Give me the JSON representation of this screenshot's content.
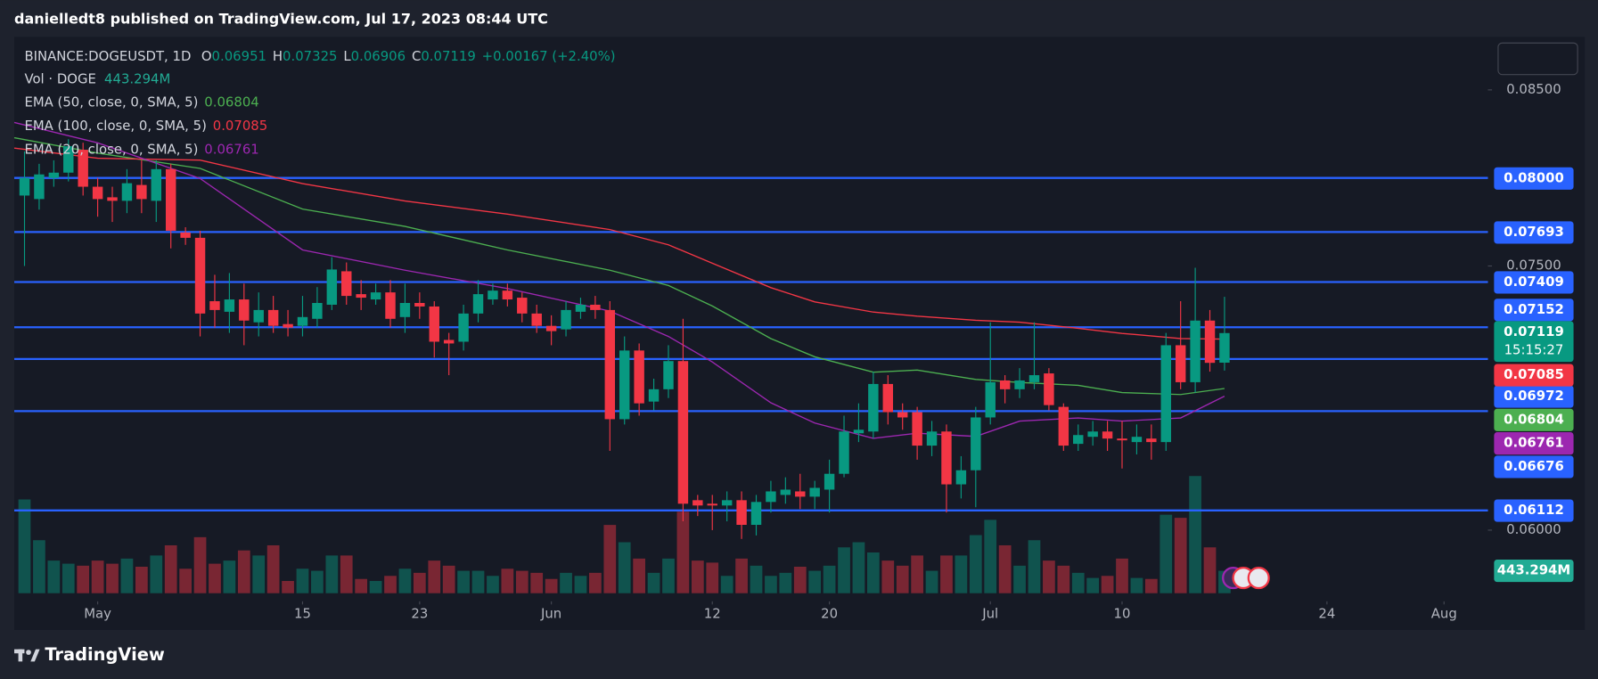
{
  "header": {
    "text": "danielledt8 published on TradingView.com, Jul 17, 2023 08:44 UTC"
  },
  "chart_data": {
    "type": "candlestick",
    "symbol": "BINANCE:DOGEUSDT, 1D",
    "ohlc_letters": [
      "O",
      "H",
      "L",
      "C"
    ],
    "change": "+0.00167 (+2.40%)",
    "countdown": "15:15:27",
    "up_color": "#089981",
    "down_color": "#f23645",
    "open": [
      0.079,
      0.0788,
      0.08,
      0.0803,
      0.0816,
      0.0795,
      0.0789,
      0.0787,
      0.0796,
      0.0787,
      0.0805,
      0.0769,
      0.0766,
      0.073,
      0.0724,
      0.0731,
      0.0718,
      0.0725,
      0.0717,
      0.0716,
      0.072,
      0.0728,
      0.0747,
      0.0734,
      0.0731,
      0.0735,
      0.0721,
      0.0729,
      0.0727,
      0.0708,
      0.0707,
      0.0723,
      0.0731,
      0.0736,
      0.0732,
      0.0723,
      0.0716,
      0.0714,
      0.0724,
      0.0728,
      0.0725,
      0.0663,
      0.0702,
      0.0673,
      0.068,
      0.0696,
      0.0617,
      0.0615,
      0.0614,
      0.0617,
      0.0603,
      0.0616,
      0.062,
      0.0622,
      0.0619,
      0.0623,
      0.0632,
      0.0655,
      0.0656,
      0.0683,
      0.0667,
      0.0667,
      0.0648,
      0.0656,
      0.0626,
      0.0634,
      0.0664,
      0.0685,
      0.068,
      0.0684,
      0.0689,
      0.067,
      0.0649,
      0.0653,
      0.0656,
      0.0652,
      0.065,
      0.0652,
      0.065,
      0.0705,
      0.0684,
      0.0719,
      0.06951
    ],
    "high": [
      0.0815,
      0.0808,
      0.081,
      0.0822,
      0.082,
      0.08,
      0.0795,
      0.0805,
      0.081,
      0.081,
      0.0808,
      0.0772,
      0.077,
      0.0745,
      0.0746,
      0.074,
      0.0735,
      0.0733,
      0.0725,
      0.0733,
      0.0738,
      0.0755,
      0.0752,
      0.0742,
      0.074,
      0.0742,
      0.074,
      0.0735,
      0.073,
      0.0712,
      0.0728,
      0.0742,
      0.074,
      0.074,
      0.0735,
      0.0728,
      0.0722,
      0.073,
      0.0732,
      0.0733,
      0.073,
      0.071,
      0.0706,
      0.0686,
      0.0705,
      0.072,
      0.062,
      0.062,
      0.0622,
      0.0622,
      0.062,
      0.0628,
      0.063,
      0.0632,
      0.0628,
      0.064,
      0.0665,
      0.0672,
      0.069,
      0.0688,
      0.0672,
      0.067,
      0.0662,
      0.066,
      0.0642,
      0.067,
      0.0718,
      0.0688,
      0.0692,
      0.0718,
      0.0692,
      0.0672,
      0.066,
      0.0662,
      0.0662,
      0.0662,
      0.066,
      0.066,
      0.0712,
      0.073,
      0.0749,
      0.0725,
      0.07325
    ],
    "low": [
      0.075,
      0.0782,
      0.0795,
      0.0798,
      0.079,
      0.0778,
      0.0775,
      0.078,
      0.078,
      0.0775,
      0.076,
      0.0762,
      0.071,
      0.0715,
      0.0712,
      0.0705,
      0.071,
      0.0712,
      0.071,
      0.071,
      0.0715,
      0.0725,
      0.0728,
      0.0725,
      0.0728,
      0.0715,
      0.0712,
      0.072,
      0.0698,
      0.0688,
      0.0702,
      0.0718,
      0.0728,
      0.0727,
      0.0718,
      0.0712,
      0.0705,
      0.071,
      0.072,
      0.072,
      0.0645,
      0.066,
      0.0665,
      0.0668,
      0.0675,
      0.0605,
      0.0608,
      0.06,
      0.0605,
      0.0595,
      0.0597,
      0.061,
      0.0615,
      0.0612,
      0.0612,
      0.061,
      0.063,
      0.065,
      0.0652,
      0.066,
      0.0657,
      0.064,
      0.0642,
      0.061,
      0.0618,
      0.0613,
      0.066,
      0.0672,
      0.0675,
      0.068,
      0.0668,
      0.0645,
      0.0645,
      0.0648,
      0.0645,
      0.0635,
      0.0643,
      0.064,
      0.0645,
      0.068,
      0.0678,
      0.069,
      0.06906
    ],
    "close": [
      0.08,
      0.0802,
      0.0803,
      0.0818,
      0.0795,
      0.0788,
      0.0787,
      0.0797,
      0.0788,
      0.0805,
      0.077,
      0.0766,
      0.0723,
      0.0725,
      0.0731,
      0.0719,
      0.0725,
      0.0716,
      0.0715,
      0.0721,
      0.0729,
      0.0748,
      0.0733,
      0.0732,
      0.0735,
      0.072,
      0.0729,
      0.0727,
      0.0707,
      0.0706,
      0.0723,
      0.0734,
      0.0736,
      0.0731,
      0.0723,
      0.0716,
      0.0713,
      0.0725,
      0.0728,
      0.0725,
      0.0663,
      0.0702,
      0.0672,
      0.068,
      0.0696,
      0.0615,
      0.0614,
      0.0614,
      0.0617,
      0.0603,
      0.0616,
      0.0622,
      0.0623,
      0.0619,
      0.0624,
      0.0632,
      0.0656,
      0.0657,
      0.0683,
      0.0667,
      0.0664,
      0.0648,
      0.0656,
      0.0626,
      0.0634,
      0.0664,
      0.0684,
      0.068,
      0.0685,
      0.0688,
      0.0671,
      0.0648,
      0.0654,
      0.0656,
      0.0652,
      0.0651,
      0.0653,
      0.065,
      0.0705,
      0.0684,
      0.0719,
      0.0695,
      0.07119
    ],
    "volume": {
      "name": "Vol · DOGE",
      "last_label": "443.294M",
      "values": [
        1854,
        1048,
        645,
        584,
        544,
        645,
        584,
        685,
        524,
        746,
        947,
        484,
        1108,
        584,
        645,
        846,
        746,
        947,
        242,
        484,
        443,
        746,
        746,
        282,
        242,
        343,
        484,
        403,
        645,
        544,
        443,
        443,
        343,
        484,
        443,
        403,
        282,
        403,
        343,
        403,
        1350,
        1008,
        685,
        403,
        685,
        1612,
        645,
        605,
        343,
        685,
        544,
        343,
        403,
        524,
        443,
        544,
        907,
        1008,
        806,
        645,
        544,
        746,
        443,
        746,
        746,
        1149,
        1451,
        947,
        544,
        1048,
        645,
        544,
        403,
        302,
        343,
        685,
        302,
        282,
        1552,
        1491,
        2317,
        907,
        443.294
      ]
    },
    "ema": {
      "x": [
        -0.7,
        5,
        12,
        19,
        26,
        33,
        40,
        44,
        47,
        51,
        54,
        58,
        61,
        65,
        68,
        72,
        75,
        79,
        82
      ],
      "series": [
        {
          "name": "EMA (50, close, 0, SMA, 5)",
          "color": "#4caf50",
          "values": [
            0.08228,
            0.08141,
            0.08054,
            0.07823,
            0.07725,
            0.07591,
            0.07476,
            0.07389,
            0.07273,
            0.07088,
            0.06984,
            0.06897,
            0.06909,
            0.06856,
            0.06839,
            0.06822,
            0.06781,
            0.0677,
            0.06804
          ]
        },
        {
          "name": "EMA (100, close, 0, SMA, 5)",
          "color": "#f23645",
          "values": [
            0.0817,
            0.08112,
            0.08101,
            0.07968,
            0.07869,
            0.07794,
            0.07707,
            0.0762,
            0.07516,
            0.07377,
            0.07296,
            0.07238,
            0.07215,
            0.07192,
            0.07181,
            0.07146,
            0.07117,
            0.07088,
            0.07085
          ]
        },
        {
          "name": "EMA (20, close, 0, SMA, 5)",
          "color": "#9c27b0",
          "values": [
            0.08315,
            0.08199,
            0.07997,
            0.07591,
            0.07476,
            0.07372,
            0.07244,
            0.071,
            0.06955,
            0.06723,
            0.06608,
            0.06521,
            0.0655,
            0.06532,
            0.06619,
            0.06637,
            0.06619,
            0.06637,
            0.06761
          ]
        }
      ]
    },
    "levels": [
      {
        "value": 0.08,
        "label": "0.08000"
      },
      {
        "value": 0.07693,
        "label": "0.07693"
      },
      {
        "value": 0.07409,
        "label": "0.07409"
      },
      {
        "value": 0.07152,
        "label": "0.07152"
      },
      {
        "value": 0.06972,
        "label": "0.06972"
      },
      {
        "value": 0.06676,
        "label": "0.06676"
      },
      {
        "value": 0.06112,
        "label": "0.06112"
      }
    ],
    "level_color": "#2962ff",
    "ylim": [
      0.05636,
      0.08801
    ],
    "yticks": [
      {
        "value": 0.085,
        "label": "0.08500"
      },
      {
        "value": 0.075,
        "label": "0.07500"
      },
      {
        "value": 0.06,
        "label": "0.06000"
      }
    ],
    "xlim": [
      -0.7,
      100
    ],
    "xticks": [
      {
        "value": 5,
        "label": "May"
      },
      {
        "value": 19,
        "label": "15"
      },
      {
        "value": 27,
        "label": "23"
      },
      {
        "value": 36,
        "label": "Jun"
      },
      {
        "value": 47,
        "label": "12"
      },
      {
        "value": 55,
        "label": "20"
      },
      {
        "value": 66,
        "label": "Jul"
      },
      {
        "value": 75,
        "label": "10"
      },
      {
        "value": 89,
        "label": "24"
      },
      {
        "value": 97,
        "label": "Aug"
      }
    ]
  },
  "footer": {
    "brand": "TradingView"
  }
}
